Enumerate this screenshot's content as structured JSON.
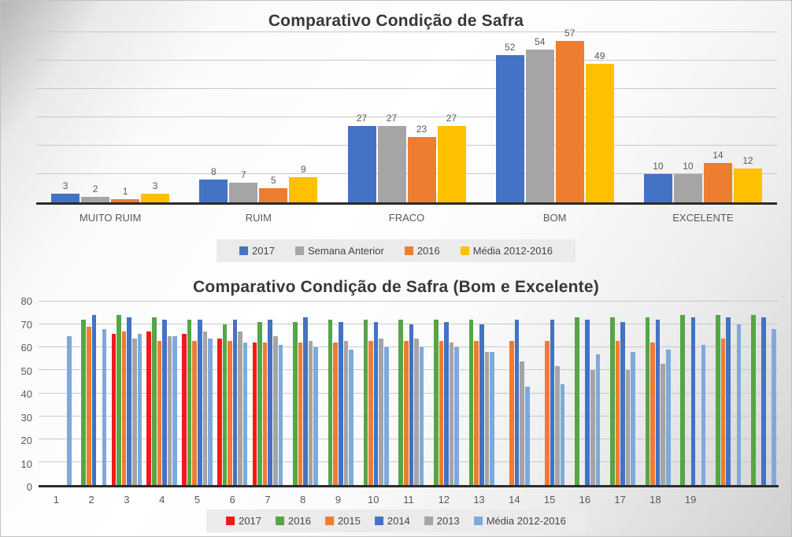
{
  "chart_data": [
    {
      "type": "bar",
      "title": "Comparativo Condição de Safra",
      "categories": [
        "MUITO RUIM",
        "RUIM",
        "FRACO",
        "BOM",
        "EXCELENTE"
      ],
      "series": [
        {
          "name": "2017",
          "color": "#4472C4",
          "values": [
            3,
            8,
            27,
            52,
            10
          ]
        },
        {
          "name": "Semana Anterior",
          "color": "#A5A5A5",
          "values": [
            2,
            7,
            27,
            54,
            10
          ]
        },
        {
          "name": "2016",
          "color": "#ED7D31",
          "values": [
            1,
            5,
            23,
            57,
            14
          ]
        },
        {
          "name": "Média 2012-2016",
          "color": "#FFC000",
          "values": [
            3,
            9,
            27,
            49,
            12
          ]
        }
      ],
      "ylim": [
        0,
        60
      ],
      "ytick_step": 10,
      "grid": true,
      "y_axis_visible": false,
      "data_labels": true,
      "legend_position": "bottom"
    },
    {
      "type": "bar",
      "title": "Comparativo Condição de Safra (Bom e Excelente)",
      "categories": [
        "1",
        "2",
        "3",
        "4",
        "5",
        "6",
        "7",
        "8",
        "9",
        "10",
        "11",
        "12",
        "13",
        "14",
        "15",
        "16",
        "17",
        "18",
        "19",
        "",
        ""
      ],
      "series": [
        {
          "name": "2017",
          "color": "#F61818",
          "values": [
            null,
            null,
            66,
            67,
            66,
            64,
            62,
            null,
            null,
            null,
            null,
            null,
            null,
            null,
            null,
            null,
            null,
            null,
            null,
            null,
            null
          ]
        },
        {
          "name": "2016",
          "color": "#56A546",
          "values": [
            null,
            72,
            74,
            73,
            72,
            70,
            71,
            71,
            72,
            72,
            72,
            72,
            72,
            null,
            null,
            73,
            73,
            73,
            74,
            74,
            74
          ]
        },
        {
          "name": "2015",
          "color": "#ED7D31",
          "values": [
            null,
            69,
            67,
            63,
            63,
            63,
            62,
            62,
            62,
            63,
            63,
            63,
            63,
            63,
            63,
            null,
            63,
            62,
            null,
            64,
            null
          ]
        },
        {
          "name": "2014",
          "color": "#4472C4",
          "values": [
            null,
            74,
            73,
            72,
            72,
            72,
            72,
            73,
            71,
            71,
            70,
            71,
            70,
            72,
            72,
            72,
            71,
            72,
            73,
            73,
            73
          ]
        },
        {
          "name": "2013",
          "color": "#A5A5A5",
          "values": [
            null,
            null,
            64,
            65,
            67,
            67,
            65,
            63,
            63,
            64,
            64,
            62,
            58,
            54,
            52,
            50,
            50,
            53,
            null,
            null,
            null
          ]
        },
        {
          "name": "Média 2012-2016",
          "color": "#7EA9DC",
          "values": [
            65,
            68,
            66,
            65,
            64,
            62,
            61,
            60,
            59,
            60,
            60,
            60,
            58,
            43,
            44,
            57,
            58,
            59,
            61,
            70,
            68
          ]
        }
      ],
      "ylim": [
        0,
        80
      ],
      "ytick_step": 10,
      "yticks": [
        "0",
        "10",
        "20",
        "30",
        "40",
        "50",
        "60",
        "70",
        "80"
      ],
      "grid": true,
      "y_axis_visible": true,
      "data_labels": false,
      "legend_position": "bottom"
    }
  ]
}
